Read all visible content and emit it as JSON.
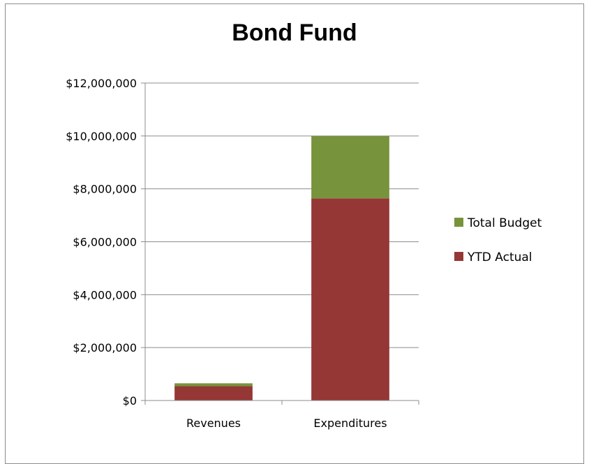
{
  "chart_data": {
    "type": "bar",
    "stacked": true,
    "title": "Bond Fund",
    "xlabel": "",
    "ylabel": "",
    "categories": [
      "Revenues",
      "Expenditures"
    ],
    "series": [
      {
        "name": "YTD Actual",
        "values": [
          540000,
          7640000
        ],
        "color": "#953735"
      },
      {
        "name": "Total Budget",
        "values": [
          110000,
          2360000
        ],
        "color": "#77933c"
      }
    ],
    "ylim": [
      0,
      12000000
    ],
    "yticks": [
      0,
      2000000,
      4000000,
      6000000,
      8000000,
      10000000,
      12000000
    ],
    "ytick_labels": [
      "$0",
      "$2,000,000",
      "$4,000,000",
      "$6,000,000",
      "$8,000,000",
      "$10,000,000",
      "$12,000,000"
    ],
    "grid": true,
    "legend_position": "right",
    "legend_order": [
      "Total Budget",
      "YTD Actual"
    ]
  }
}
